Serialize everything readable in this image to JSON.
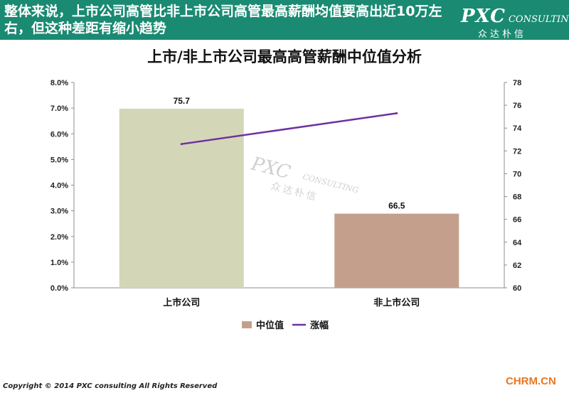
{
  "header": {
    "title": "整体来说，上市公司高管比非上市公司高管最高薪酬均值要高出近10万左右，但这种差距有缩小趋势",
    "logo_main": "PXC",
    "logo_sub": "CONSULTING",
    "logo_cn": "众达朴信"
  },
  "watermark": {
    "main": "PXC",
    "sub": "CONSULTING",
    "cn": "众达朴信"
  },
  "footer": {
    "copyright": "Copyright © 2014  PXC consulting All Rights Reserved",
    "brand": "CHRM.CN"
  },
  "chart_data": {
    "type": "bar",
    "title": "上市/非上市公司最高高管薪酬中位值分析",
    "categories": [
      "上市公司",
      "非上市公司"
    ],
    "series": [
      {
        "name": "中位值",
        "type": "bar",
        "axis": "right",
        "values": [
          75.7,
          66.5
        ],
        "data_labels": [
          "75.7",
          "66.5"
        ],
        "colors": [
          "#d3d7b8",
          "#c4a08c"
        ]
      },
      {
        "name": "涨幅",
        "type": "line",
        "axis": "left",
        "values": [
          0.056,
          0.068
        ],
        "color": "#7030a0"
      }
    ],
    "y_left": {
      "ylim": [
        0,
        0.08
      ],
      "ticks": [
        "0.0%",
        "1.0%",
        "2.0%",
        "3.0%",
        "4.0%",
        "5.0%",
        "6.0%",
        "7.0%",
        "8.0%"
      ]
    },
    "y_right": {
      "ylim": [
        60,
        78
      ],
      "ticks": [
        "60",
        "62",
        "64",
        "66",
        "68",
        "70",
        "72",
        "74",
        "76",
        "78"
      ]
    },
    "legend_position": "bottom",
    "grid": false
  }
}
